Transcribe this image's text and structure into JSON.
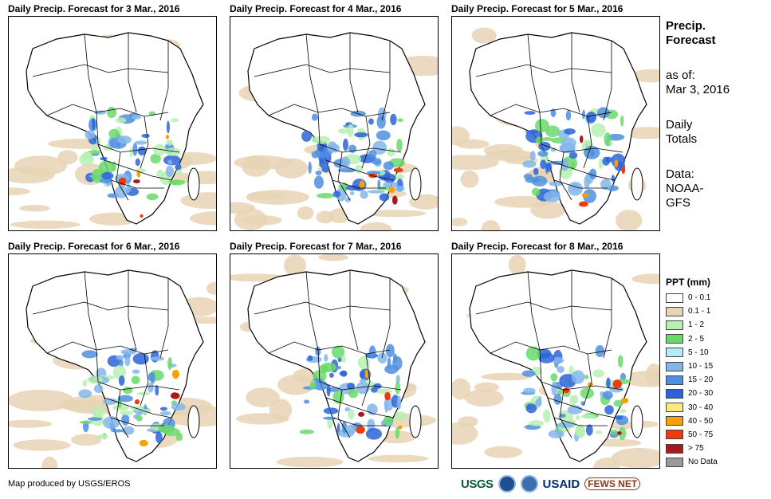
{
  "maps": [
    {
      "title": "Daily Precip. Forecast for 3 Mar., 2016"
    },
    {
      "title": "Daily Precip. Forecast for 4 Mar., 2016"
    },
    {
      "title": "Daily Precip. Forecast for 5 Mar., 2016"
    },
    {
      "title": "Daily Precip. Forecast for 6 Mar., 2016"
    },
    {
      "title": "Daily Precip. Forecast for 7 Mar., 2016"
    },
    {
      "title": "Daily Precip. Forecast for 8 Mar., 2016"
    }
  ],
  "side": {
    "heading1": "Precip.",
    "heading2": "Forecast",
    "asof_label": "as of:",
    "asof_date": "Mar 3, 2016",
    "totals1": "Daily",
    "totals2": "Totals",
    "data_label": "Data:",
    "data_src1": "NOAA-",
    "data_src2": "GFS"
  },
  "legend": {
    "title": "PPT (mm)",
    "items": [
      {
        "label": "0 - 0.1",
        "color": "#ffffff"
      },
      {
        "label": "0.1 - 1",
        "color": "#e8d3b4"
      },
      {
        "label": "1 - 2",
        "color": "#b7f0b1"
      },
      {
        "label": "2 - 5",
        "color": "#6ad96a"
      },
      {
        "label": "5 - 10",
        "color": "#b3ecf5"
      },
      {
        "label": "10 - 15",
        "color": "#84b6ea"
      },
      {
        "label": "15 - 20",
        "color": "#4f8fe0"
      },
      {
        "label": "20 - 30",
        "color": "#2c64d8"
      },
      {
        "label": "30 - 40",
        "color": "#fde783"
      },
      {
        "label": "40 - 50",
        "color": "#f7a100"
      },
      {
        "label": "50 - 75",
        "color": "#ee3a0c"
      },
      {
        "label": "> 75",
        "color": "#a8191c"
      },
      {
        "label": "No Data",
        "color": "#9a9a9a"
      }
    ]
  },
  "credit": "Map produced by USGS/EROS",
  "logos": {
    "usgs": "USGS",
    "usaid": "USAID",
    "fews": "FEWS NET"
  }
}
